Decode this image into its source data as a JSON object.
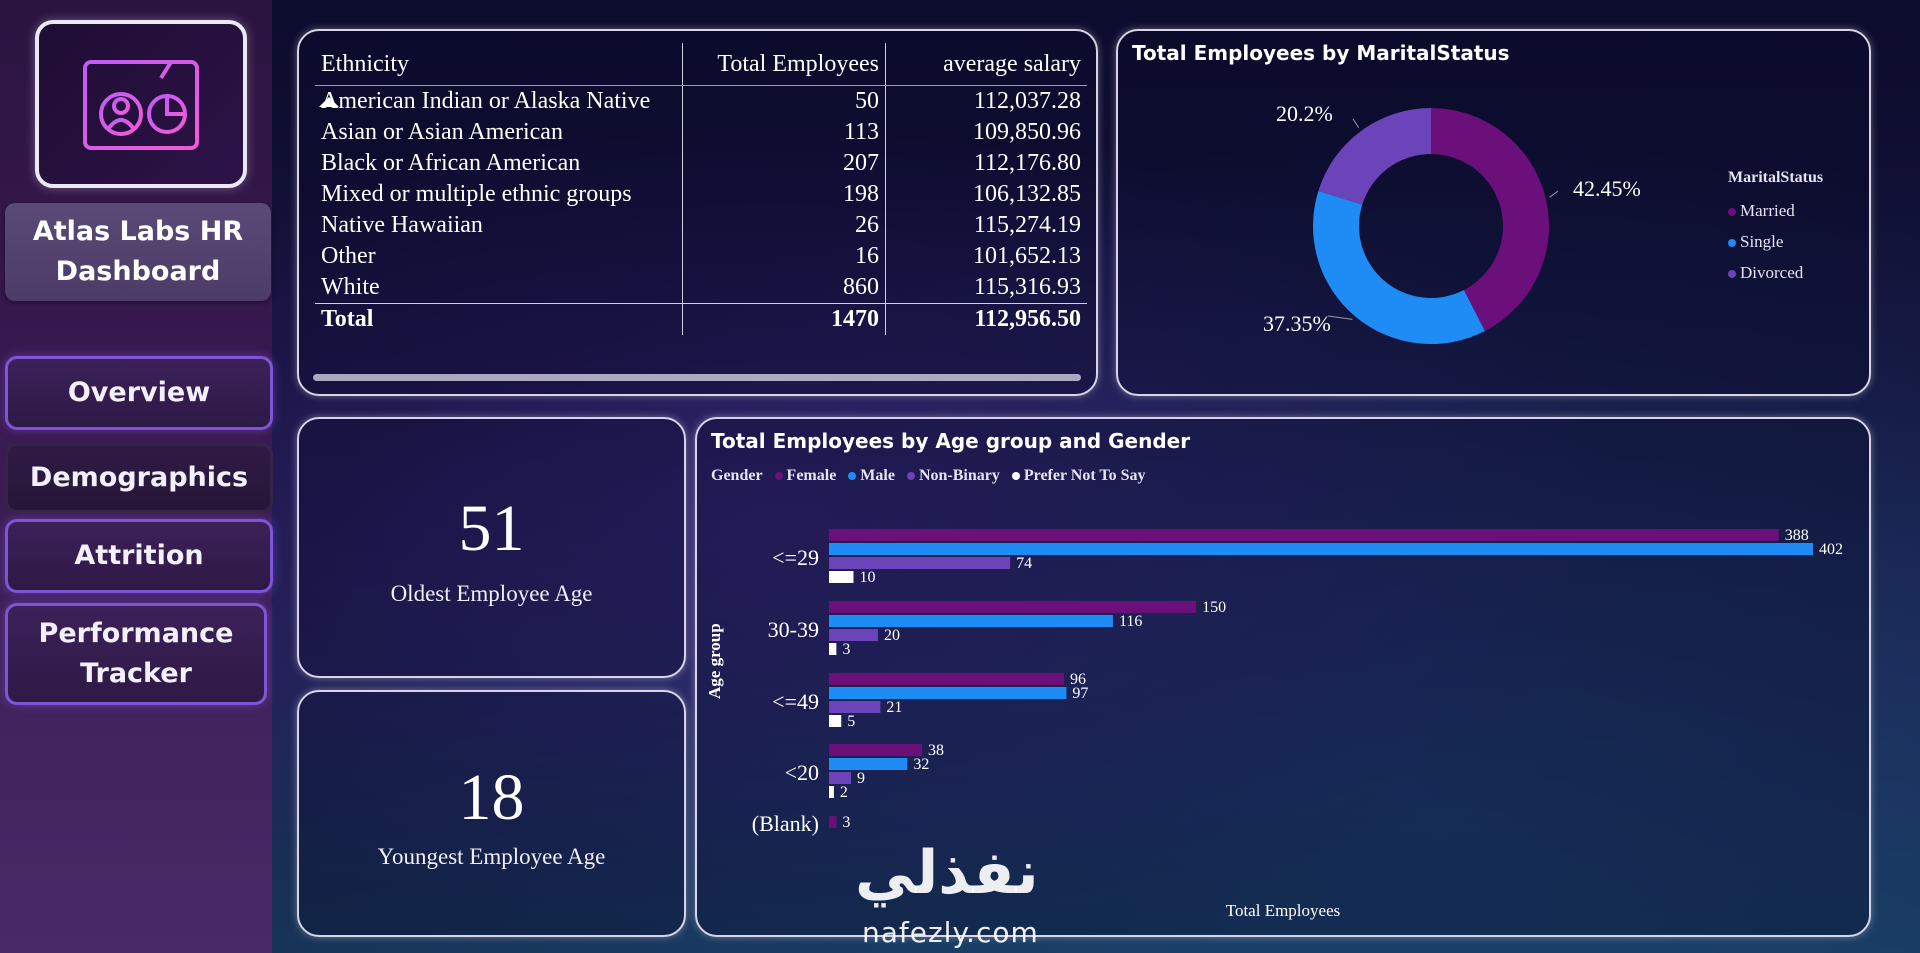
{
  "sidebar": {
    "title": "Atlas Labs HR Dashboard",
    "nav": [
      {
        "label": "Overview"
      },
      {
        "label": "Demographics"
      },
      {
        "label": "Attrition"
      },
      {
        "label": "Performance Tracker"
      }
    ]
  },
  "ethnicity_table": {
    "headers": [
      "Ethnicity",
      "Total Employees",
      "average salary"
    ],
    "rows": [
      [
        "American Indian or Alaska Native",
        "50",
        "112,037.28"
      ],
      [
        "Asian or Asian American",
        "113",
        "109,850.96"
      ],
      [
        "Black or African American",
        "207",
        "112,176.80"
      ],
      [
        "Mixed or multiple ethnic groups",
        "198",
        "106,132.85"
      ],
      [
        "Native Hawaiian",
        "26",
        "115,274.19"
      ],
      [
        "Other",
        "16",
        "101,652.13"
      ],
      [
        "White",
        "860",
        "115,316.93"
      ]
    ],
    "total": [
      "Total",
      "1470",
      "112,956.50"
    ]
  },
  "kpis": {
    "oldest": {
      "value": "51",
      "label": "Oldest Employee Age"
    },
    "youngest": {
      "value": "18",
      "label": "Youngest Employee Age"
    }
  },
  "colors": {
    "female": "#6b0f7a",
    "male": "#1f8bf5",
    "nonbinary": "#6a44b8",
    "prefer_not": "#ffffff",
    "married": "#6b0f7a",
    "single": "#1f8bf5",
    "divorced": "#6a44b8"
  },
  "chart_data": [
    {
      "type": "pie",
      "title": "Total Employees by MaritalStatus",
      "legend_title": "MaritalStatus",
      "categories": [
        "Married",
        "Single",
        "Divorced"
      ],
      "values": [
        42.45,
        37.35,
        20.2
      ],
      "labels": [
        "42.45%",
        "37.35%",
        "20.2%"
      ]
    },
    {
      "type": "bar",
      "title": "Total Employees by Age group and Gender",
      "legend_title": "Gender",
      "xlabel": "Total Employees",
      "ylabel": "Age group",
      "categories": [
        "<=29",
        "30-39",
        "<=49",
        "<20",
        "(Blank)"
      ],
      "series": [
        {
          "name": "Female",
          "values": [
            388,
            150,
            96,
            38,
            3
          ]
        },
        {
          "name": "Male",
          "values": [
            402,
            116,
            97,
            32,
            null
          ]
        },
        {
          "name": "Non-Binary",
          "values": [
            74,
            20,
            21,
            9,
            null
          ]
        },
        {
          "name": "Prefer Not To Say",
          "values": [
            10,
            3,
            5,
            2,
            null
          ]
        }
      ],
      "xlim": [
        0,
        402
      ]
    }
  ],
  "watermark": {
    "arabic": "نفذلي",
    "site": "nafezly.com"
  }
}
